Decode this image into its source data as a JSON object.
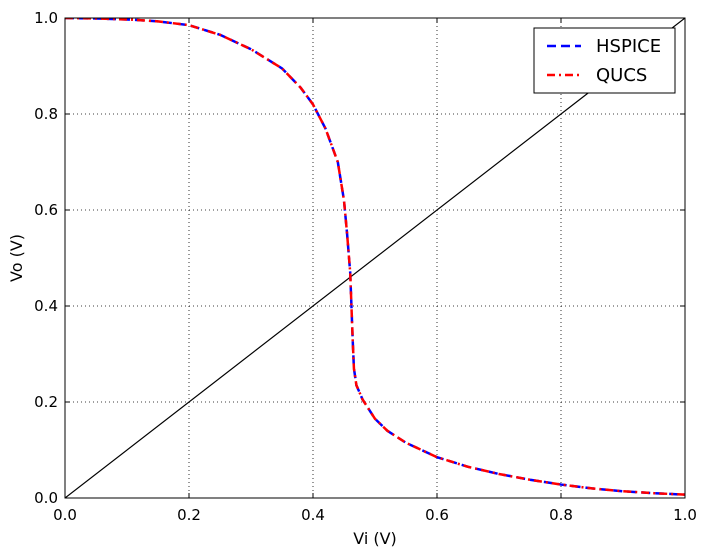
{
  "chart_data": {
    "type": "line",
    "title": "",
    "xlabel": "Vi (V)",
    "ylabel": "Vo (V)",
    "xlim": [
      0,
      1
    ],
    "ylim": [
      0,
      1
    ],
    "grid": true,
    "legend_position": "top-right",
    "xticks": [
      "0.0",
      "0.2",
      "0.4",
      "0.6",
      "0.8",
      "1.0"
    ],
    "yticks": [
      "0.0",
      "0.2",
      "0.4",
      "0.6",
      "0.8",
      "1.0"
    ],
    "series": [
      {
        "name": "HSPICE",
        "color": "#0000ff",
        "style": "dashed",
        "x": [
          0.0,
          0.05,
          0.1,
          0.15,
          0.2,
          0.25,
          0.3,
          0.35,
          0.38,
          0.4,
          0.42,
          0.44,
          0.45,
          0.455,
          0.46,
          0.462,
          0.464,
          0.466,
          0.47,
          0.48,
          0.5,
          0.52,
          0.55,
          0.6,
          0.65,
          0.7,
          0.75,
          0.8,
          0.85,
          0.9,
          0.95,
          1.0
        ],
        "y": [
          1.0,
          0.999,
          0.997,
          0.993,
          0.985,
          0.965,
          0.935,
          0.895,
          0.855,
          0.82,
          0.77,
          0.7,
          0.62,
          0.55,
          0.47,
          0.4,
          0.33,
          0.27,
          0.235,
          0.205,
          0.165,
          0.14,
          0.115,
          0.085,
          0.065,
          0.05,
          0.038,
          0.028,
          0.02,
          0.014,
          0.01,
          0.007
        ]
      },
      {
        "name": "QUCS",
        "color": "#ff0000",
        "style": "dashdot",
        "x": [
          0.0,
          0.05,
          0.1,
          0.15,
          0.2,
          0.25,
          0.3,
          0.35,
          0.38,
          0.4,
          0.42,
          0.44,
          0.45,
          0.455,
          0.46,
          0.462,
          0.464,
          0.466,
          0.47,
          0.48,
          0.5,
          0.52,
          0.55,
          0.6,
          0.65,
          0.7,
          0.75,
          0.8,
          0.85,
          0.9,
          0.95,
          1.0
        ],
        "y": [
          1.0,
          0.999,
          0.997,
          0.993,
          0.985,
          0.965,
          0.935,
          0.895,
          0.855,
          0.82,
          0.77,
          0.7,
          0.62,
          0.55,
          0.47,
          0.4,
          0.33,
          0.27,
          0.235,
          0.205,
          0.165,
          0.14,
          0.115,
          0.085,
          0.065,
          0.05,
          0.038,
          0.028,
          0.02,
          0.014,
          0.01,
          0.007
        ]
      }
    ],
    "reference_line": {
      "color": "#000000",
      "x": [
        0,
        1
      ],
      "y": [
        0,
        1
      ]
    }
  }
}
